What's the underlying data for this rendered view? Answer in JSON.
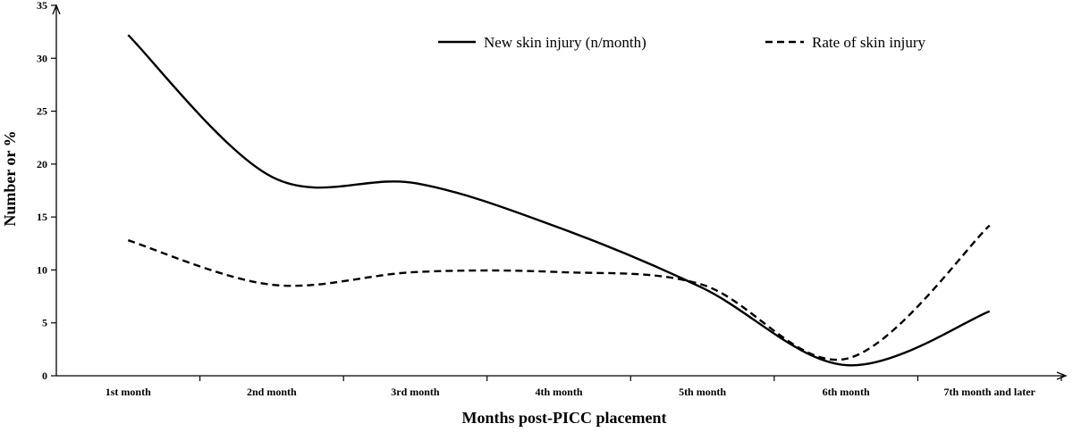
{
  "chart_data": {
    "type": "line",
    "title": "",
    "xlabel": "Months post-PICC placement",
    "ylabel": "Number or %",
    "ylim": [
      0,
      35
    ],
    "yticks": [
      0,
      5,
      10,
      15,
      20,
      25,
      30,
      35
    ],
    "categories": [
      "1st month",
      "2nd month",
      "3rd month",
      "4th month",
      "5th month",
      "6th month",
      "7th month and later"
    ],
    "grid": false,
    "legend_position": "top-right",
    "series": [
      {
        "name": "New skin injury (n/month)",
        "style": "solid",
        "color": "#000000",
        "values": [
          32.2,
          18.8,
          18.2,
          14.0,
          8.3,
          1.0,
          6.1
        ]
      },
      {
        "name": "Rate of skin injury",
        "style": "dashed",
        "color": "#000000",
        "values": [
          12.8,
          8.6,
          9.8,
          9.8,
          8.6,
          1.6,
          14.2
        ]
      }
    ]
  }
}
